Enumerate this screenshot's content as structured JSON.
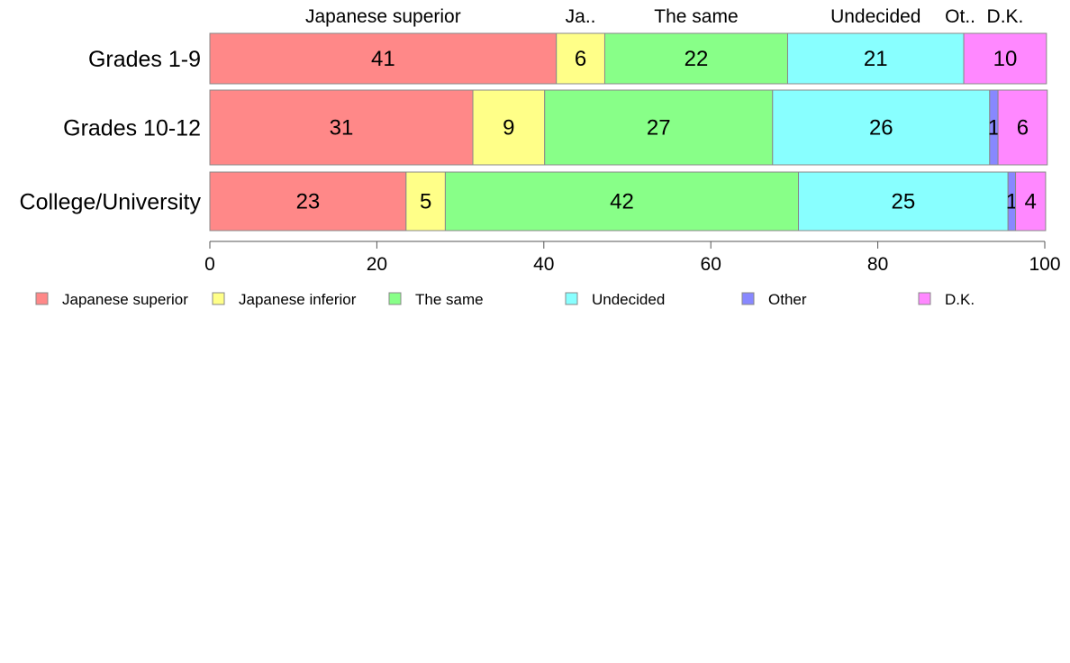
{
  "chart_data": {
    "type": "bar",
    "orientation": "horizontal",
    "stacked": true,
    "title": "",
    "xlabel": "",
    "ylabel": "",
    "xlim": [
      0,
      100
    ],
    "x_ticks": [
      0,
      20,
      40,
      60,
      80,
      100
    ],
    "grid": false,
    "legend_position": "bottom",
    "categories": [
      "Grades 1-9",
      "Grades 10-12",
      "College/University"
    ],
    "segment_header_labels": [
      "Japanese superior",
      "Ja..",
      "The same",
      "Undecided",
      "Ot..",
      "D.K."
    ],
    "series": [
      {
        "name": "Japanese superior",
        "color": "#ff8888",
        "values": [
          41.5,
          31.5,
          23.5
        ]
      },
      {
        "name": "Japanese inferior",
        "color": "#ffff88",
        "values": [
          5.8,
          8.6,
          4.7
        ]
      },
      {
        "name": "The same",
        "color": "#88ff88",
        "values": [
          21.9,
          27.3,
          42.3
        ]
      },
      {
        "name": "Undecided",
        "color": "#88ffff",
        "values": [
          21.1,
          26.0,
          25.1
        ]
      },
      {
        "name": "Other",
        "color": "#8888ff",
        "values": [
          0,
          1.0,
          0.9
        ]
      },
      {
        "name": "D.K.",
        "color": "#ff88ff",
        "values": [
          9.9,
          5.9,
          3.6
        ]
      }
    ],
    "data_labels": [
      [
        "41",
        "6",
        "22",
        "21",
        "",
        "10"
      ],
      [
        "31",
        "9",
        "27",
        "26",
        "1",
        "6"
      ],
      [
        "23",
        "5",
        "42",
        "25",
        "1",
        "4"
      ]
    ]
  }
}
